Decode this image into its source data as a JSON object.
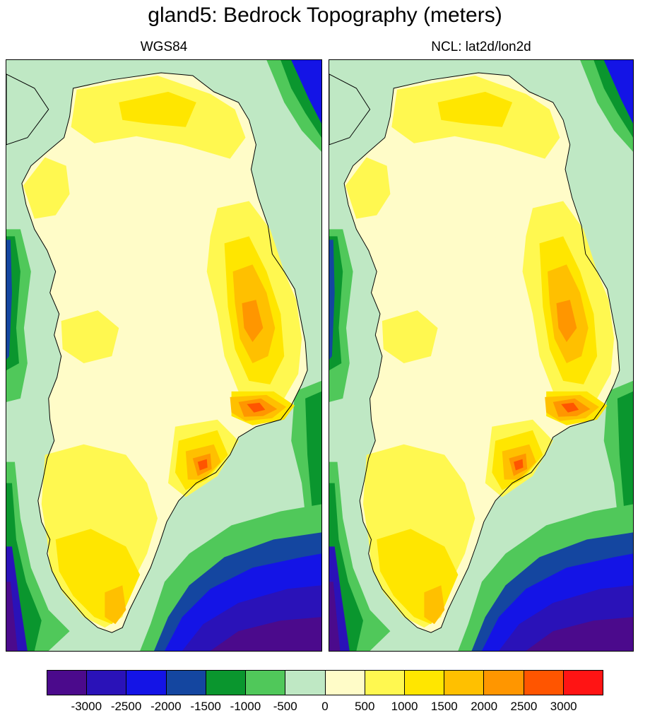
{
  "title": "gland5: Bedrock Topography (meters)",
  "panels": [
    {
      "subtitle": "WGS84"
    },
    {
      "subtitle": "NCL: lat2d/lon2d"
    }
  ],
  "colorbar": {
    "colors": [
      "#4b0a8c",
      "#2a12b8",
      "#1414e6",
      "#1446a0",
      "#0a962e",
      "#50c85a",
      "#bfe8c4",
      "#fffcc8",
      "#fff850",
      "#ffe600",
      "#ffc000",
      "#ff9600",
      "#ff5500",
      "#ff1414"
    ],
    "labels": [
      "-3000",
      "-2500",
      "-2000",
      "-1500",
      "-1000",
      "-500",
      "0",
      "500",
      "1000",
      "1500",
      "2000",
      "2500",
      "3000"
    ]
  },
  "map_colors": {
    "ice_low": "#fffcc8",
    "ice_mid": "#fff850",
    "ice_high": "#ffe600",
    "mountain": "#ffc000",
    "peak": "#ff9600",
    "summit": "#ff5500",
    "shelf": "#bfe8c4",
    "slope": "#50c85a",
    "slope_deep": "#0a962e",
    "deep": "#1446a0",
    "abyss": "#1414e6",
    "basin": "#2a12b8",
    "trench": "#4b0a8c"
  }
}
